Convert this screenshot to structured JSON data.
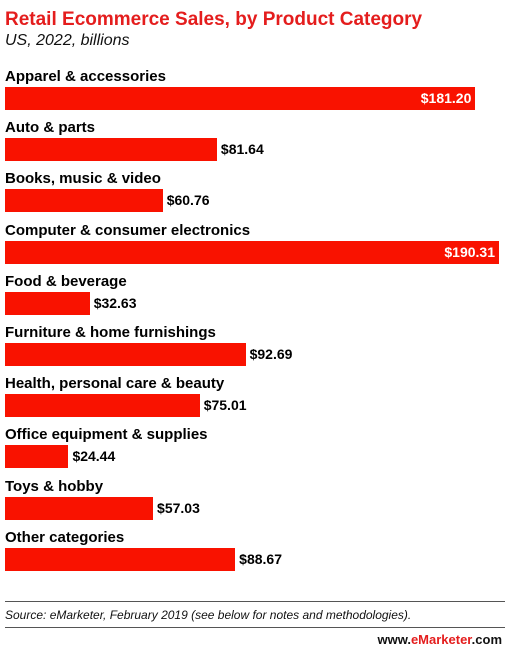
{
  "chart_data": {
    "type": "bar",
    "orientation": "horizontal",
    "title": "Retail Ecommerce Sales, by Product Category",
    "subtitle": "US, 2022, billions",
    "categories": [
      "Apparel & accessories",
      "Auto & parts",
      "Books, music & video",
      "Computer & consumer electronics",
      "Food & beverage",
      "Furniture & home furnishings",
      "Health, personal care & beauty",
      "Office equipment & supplies",
      "Toys & hobby",
      "Other categories"
    ],
    "values": [
      181.2,
      81.64,
      60.76,
      190.31,
      32.63,
      92.69,
      75.01,
      24.44,
      57.03,
      88.67
    ],
    "value_labels": [
      "$181.20",
      "$81.64",
      "$60.76",
      "$190.31",
      "$32.63",
      "$92.69",
      "$75.01",
      "$24.44",
      "$57.03",
      "$88.67"
    ],
    "xlim": [
      0,
      190.31
    ],
    "grid": false,
    "bar_color": "#f91200"
  },
  "footer": {
    "source": "Source: eMarketer, February 2019 (see below for notes and methodologies).",
    "brand_prefix": "www.",
    "brand_accent": "eMarketer",
    "brand_suffix": ".com"
  },
  "colors": {
    "title": "#e41d1d",
    "bar": "#f91200"
  }
}
